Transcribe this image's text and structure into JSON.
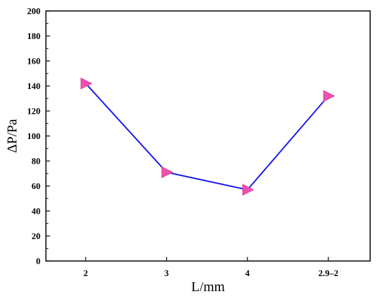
{
  "chart_data": {
    "type": "line",
    "title": "",
    "xlabel": "L/mm",
    "ylabel": "ΔP/Pa",
    "categories": [
      "2",
      "3",
      "4",
      "2.9–2"
    ],
    "series": [
      {
        "values": [
          142,
          71,
          57,
          132
        ],
        "line_color": "#1a1aee",
        "marker": "right-triangle",
        "marker_color": "#f050b0"
      }
    ],
    "ylim": [
      0,
      200
    ],
    "yticks": [
      "0",
      "20",
      "40",
      "60",
      "80",
      "100",
      "120",
      "140",
      "160",
      "180",
      "200"
    ],
    "grid": false,
    "legend": "none"
  }
}
